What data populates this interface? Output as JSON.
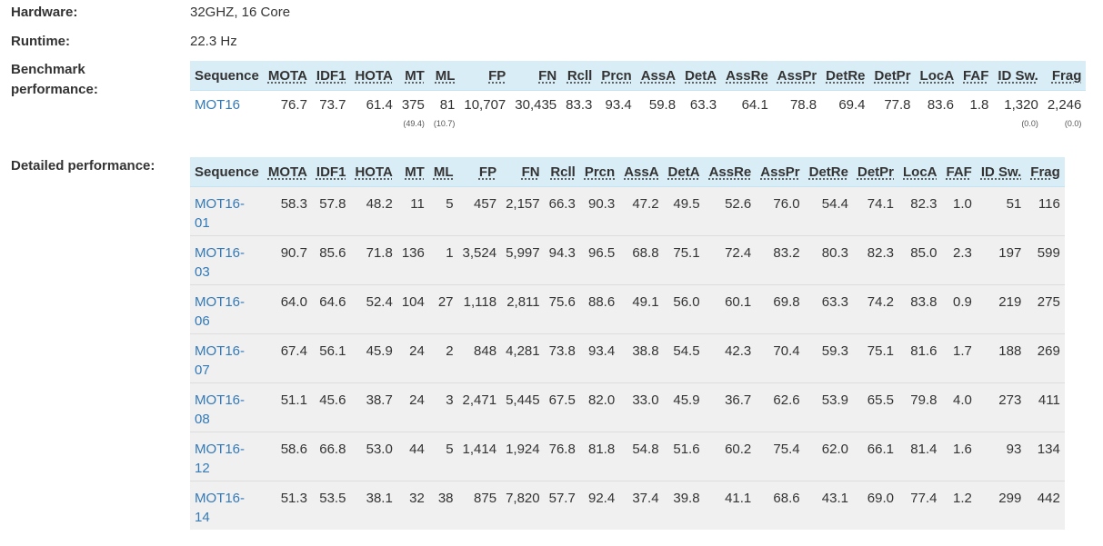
{
  "info": {
    "hardware_label": "Hardware:",
    "hardware_value": "32GHZ, 16 Core",
    "runtime_label": "Runtime:",
    "runtime_value": "22.3 Hz",
    "benchmark_label_1": "Benchmark",
    "benchmark_label_2": "performance:",
    "detailed_label": "Detailed performance:"
  },
  "columns": [
    "Sequence",
    "MOTA",
    "IDF1",
    "HOTA",
    "MT",
    "ML",
    "FP",
    "FN",
    "Rcll",
    "Prcn",
    "AssA",
    "DetA",
    "AssRe",
    "AssPr",
    "DetRe",
    "DetPr",
    "LocA",
    "FAF",
    "ID Sw.",
    "Frag"
  ],
  "benchmark": {
    "row": [
      "MOT16",
      "76.7",
      "73.7",
      "61.4",
      "375",
      "81",
      "10,707",
      "30,435",
      "83.3",
      "93.4",
      "59.8",
      "63.3",
      "64.1",
      "78.8",
      "69.4",
      "77.8",
      "83.6",
      "1.8",
      "1,320",
      "2,246"
    ],
    "sub": {
      "mt": "(49.4)",
      "ml": "(10.7)",
      "idsw": "(0.0)",
      "frag": "(0.0)"
    }
  },
  "detailed": [
    {
      "seq": "MOT16-01",
      "values": [
        "58.3",
        "57.8",
        "48.2",
        "11",
        "5",
        "457",
        "2,157",
        "66.3",
        "90.3",
        "47.2",
        "49.5",
        "52.6",
        "76.0",
        "54.4",
        "74.1",
        "82.3",
        "1.0",
        "51",
        "116"
      ]
    },
    {
      "seq": "MOT16-03",
      "values": [
        "90.7",
        "85.6",
        "71.8",
        "136",
        "1",
        "3,524",
        "5,997",
        "94.3",
        "96.5",
        "68.8",
        "75.1",
        "72.4",
        "83.2",
        "80.3",
        "82.3",
        "85.0",
        "2.3",
        "197",
        "599"
      ]
    },
    {
      "seq": "MOT16-06",
      "values": [
        "64.0",
        "64.6",
        "52.4",
        "104",
        "27",
        "1,118",
        "2,811",
        "75.6",
        "88.6",
        "49.1",
        "56.0",
        "60.1",
        "69.8",
        "63.3",
        "74.2",
        "83.8",
        "0.9",
        "219",
        "275"
      ]
    },
    {
      "seq": "MOT16-07",
      "values": [
        "67.4",
        "56.1",
        "45.9",
        "24",
        "2",
        "848",
        "4,281",
        "73.8",
        "93.4",
        "38.8",
        "54.5",
        "42.3",
        "70.4",
        "59.3",
        "75.1",
        "81.6",
        "1.7",
        "188",
        "269"
      ]
    },
    {
      "seq": "MOT16-08",
      "values": [
        "51.1",
        "45.6",
        "38.7",
        "24",
        "3",
        "2,471",
        "5,445",
        "67.5",
        "82.0",
        "33.0",
        "45.9",
        "36.7",
        "62.6",
        "53.9",
        "65.5",
        "79.8",
        "4.0",
        "273",
        "411"
      ]
    },
    {
      "seq": "MOT16-12",
      "values": [
        "58.6",
        "66.8",
        "53.0",
        "44",
        "5",
        "1,414",
        "1,924",
        "76.8",
        "81.8",
        "54.8",
        "51.6",
        "60.2",
        "75.4",
        "62.0",
        "66.1",
        "81.4",
        "1.6",
        "93",
        "134"
      ]
    },
    {
      "seq": "MOT16-14",
      "values": [
        "51.3",
        "53.5",
        "38.1",
        "32",
        "38",
        "875",
        "7,820",
        "57.7",
        "92.4",
        "37.4",
        "39.8",
        "41.1",
        "68.6",
        "43.1",
        "69.0",
        "77.4",
        "1.2",
        "299",
        "442"
      ]
    }
  ]
}
